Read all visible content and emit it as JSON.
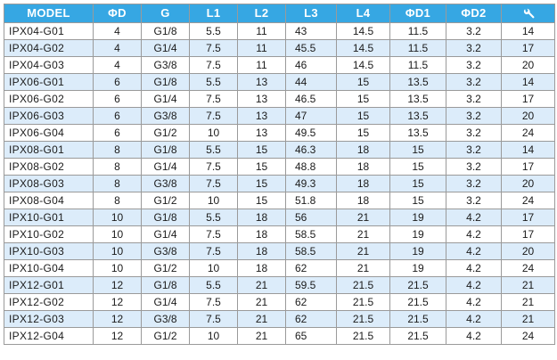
{
  "table": {
    "headers": [
      "MODEL",
      "ΦD",
      "G",
      "L1",
      "L2",
      "L3",
      "L4",
      "ΦD1",
      "ΦD2"
    ],
    "last_header_icon": "wrench-icon",
    "colors": {
      "header_bg": "#36a7e3",
      "header_text": "#ffffff",
      "stripe_bg": "#dcecfa",
      "border": "#9a9a9a"
    },
    "rows": [
      [
        "IPX04-G01",
        "4",
        "G1/8",
        "5.5",
        "11",
        "43",
        "14.5",
        "11.5",
        "3.2",
        "14"
      ],
      [
        "IPX04-G02",
        "4",
        "G1/4",
        "7.5",
        "11",
        "45.5",
        "14.5",
        "11.5",
        "3.2",
        "17"
      ],
      [
        "IPX04-G03",
        "4",
        "G3/8",
        "7.5",
        "11",
        "46",
        "14.5",
        "11.5",
        "3.2",
        "20"
      ],
      [
        "IPX06-G01",
        "6",
        "G1/8",
        "5.5",
        "13",
        "44",
        "15",
        "13.5",
        "3.2",
        "14"
      ],
      [
        "IPX06-G02",
        "6",
        "G1/4",
        "7.5",
        "13",
        "46.5",
        "15",
        "13.5",
        "3.2",
        "17"
      ],
      [
        "IPX06-G03",
        "6",
        "G3/8",
        "7.5",
        "13",
        "47",
        "15",
        "13.5",
        "3.2",
        "20"
      ],
      [
        "IPX06-G04",
        "6",
        "G1/2",
        "10",
        "13",
        "49.5",
        "15",
        "13.5",
        "3.2",
        "24"
      ],
      [
        "IPX08-G01",
        "8",
        "G1/8",
        "5.5",
        "15",
        "46.3",
        "18",
        "15",
        "3.2",
        "14"
      ],
      [
        "IPX08-G02",
        "8",
        "G1/4",
        "7.5",
        "15",
        "48.8",
        "18",
        "15",
        "3.2",
        "17"
      ],
      [
        "IPX08-G03",
        "8",
        "G3/8",
        "7.5",
        "15",
        "49.3",
        "18",
        "15",
        "3.2",
        "20"
      ],
      [
        "IPX08-G04",
        "8",
        "G1/2",
        "10",
        "15",
        "51.8",
        "18",
        "15",
        "3.2",
        "24"
      ],
      [
        "IPX10-G01",
        "10",
        "G1/8",
        "5.5",
        "18",
        "56",
        "21",
        "19",
        "4.2",
        "17"
      ],
      [
        "IPX10-G02",
        "10",
        "G1/4",
        "7.5",
        "18",
        "58.5",
        "21",
        "19",
        "4.2",
        "17"
      ],
      [
        "IPX10-G03",
        "10",
        "G3/8",
        "7.5",
        "18",
        "58.5",
        "21",
        "19",
        "4.2",
        "20"
      ],
      [
        "IPX10-G04",
        "10",
        "G1/2",
        "10",
        "18",
        "62",
        "21",
        "19",
        "4.2",
        "24"
      ],
      [
        "IPX12-G01",
        "12",
        "G1/8",
        "5.5",
        "21",
        "59.5",
        "21.5",
        "21.5",
        "4.2",
        "21"
      ],
      [
        "IPX12-G02",
        "12",
        "G1/4",
        "7.5",
        "21",
        "62",
        "21.5",
        "21.5",
        "4.2",
        "21"
      ],
      [
        "IPX12-G03",
        "12",
        "G3/8",
        "7.5",
        "21",
        "62",
        "21.5",
        "21.5",
        "4.2",
        "21"
      ],
      [
        "IPX12-G04",
        "12",
        "G1/2",
        "10",
        "21",
        "65",
        "21.5",
        "21.5",
        "4.2",
        "24"
      ]
    ]
  }
}
